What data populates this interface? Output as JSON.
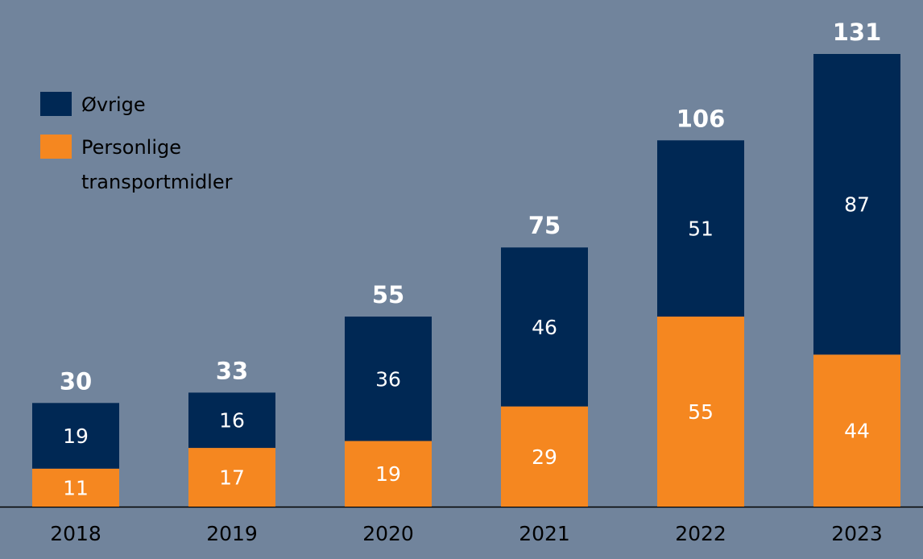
{
  "chart_data": {
    "type": "bar",
    "stacked": true,
    "categories": [
      "2018",
      "2019",
      "2020",
      "2021",
      "2022",
      "2023"
    ],
    "series": [
      {
        "name": "Personlige transportmidler",
        "color": "#f58720",
        "values": [
          11,
          17,
          19,
          29,
          55,
          44
        ]
      },
      {
        "name": "Øvrige",
        "color": "#002854",
        "values": [
          19,
          16,
          36,
          46,
          51,
          87
        ]
      }
    ],
    "totals": [
      30,
      33,
      55,
      75,
      106,
      131
    ],
    "ylim": [
      0,
      131
    ],
    "grid": false,
    "legend_position": "top-left",
    "background_color": "#71849c",
    "legend": [
      {
        "label": "Øvrige",
        "color": "#002854"
      },
      {
        "label_lines": [
          "Personlige",
          "transportmidler"
        ],
        "color": "#f58720"
      }
    ]
  }
}
